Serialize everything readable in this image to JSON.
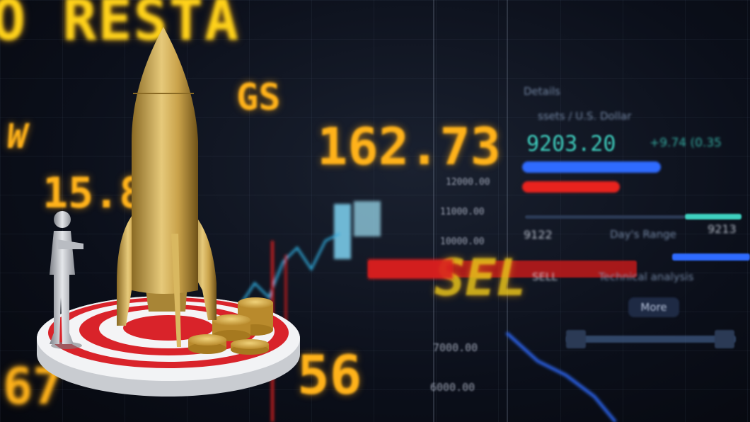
{
  "background_board": {
    "top_banner": "O RESTA",
    "tickers": {
      "gs": "GS",
      "w": "W",
      "val_158": "15.8",
      "val_16273": "162.73",
      "val_56": "56",
      "val_67": "67"
    },
    "axis_labels": [
      "12000.00",
      "11000.00",
      "10000.00",
      "7000.00",
      "6000.00"
    ],
    "right_panel": {
      "details": "Details",
      "pair": "ssets / U.S. Dollar",
      "price": "9203.20",
      "change": "+9.74 (0.35",
      "low": "9122",
      "range_label": "Day's Range",
      "high": "9213",
      "sell": "SELL",
      "technical": "Technical analysis",
      "more_button": "More"
    },
    "overlay_sell": "SEL"
  },
  "colors": {
    "ticker_orange": "#ffb21a",
    "ticker_yellow": "#ffd21a",
    "teal": "#3fd1c0",
    "pill_blue": "#2f6bff",
    "pill_red": "#e8231e",
    "target_red": "#d9232a",
    "gold": "#c9a24a",
    "silver": "#c9ccd2"
  },
  "foreground": {
    "objects": [
      "gold-rocket",
      "silver-businessman-figure",
      "red-white-target",
      "gold-coin-stacks"
    ]
  }
}
